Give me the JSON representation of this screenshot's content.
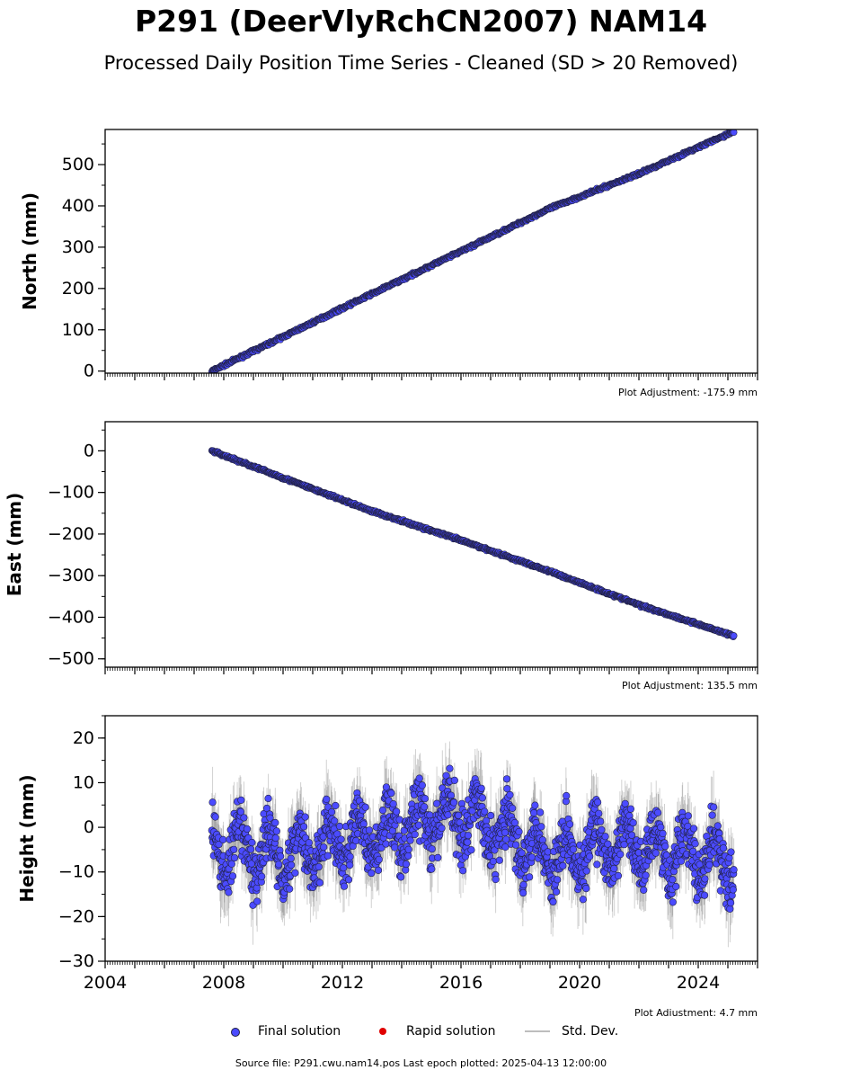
{
  "title": "P291 (DeerVlyRchCN2007) NAM14",
  "subtitle": "Processed Daily Position Time Series - Cleaned (SD > 20 Removed)",
  "legend": {
    "final_label": "Final solution",
    "rapid_label": "Rapid solution",
    "sd_label": "Std. Dev."
  },
  "footer": "Source file: P291.cwu.nam14.pos  Last epoch plotted: 2025-04-13 12:00:00",
  "colors": {
    "final": "#4b4bff",
    "rapid": "#e00000",
    "sd": "#bdbdbd",
    "edge": "#222244"
  },
  "chart_data": [
    {
      "type": "scatter",
      "ylabel": "North (mm)",
      "ylim": [
        -5,
        585
      ],
      "yticks": [
        0,
        100,
        200,
        300,
        400,
        500
      ],
      "ytick_labels": [
        "0",
        "100",
        "200",
        "300",
        "400",
        "500"
      ],
      "xlim": [
        2004,
        2026
      ],
      "adjustment": "Plot Adjustment: -175.9 mm",
      "series": [
        {
          "x": [
            2007.6,
            2010,
            2013,
            2016,
            2019,
            2022,
            2025.2
          ],
          "y": [
            0,
            83,
            187,
            290,
            394,
            478,
            580
          ]
        }
      ]
    },
    {
      "type": "scatter",
      "ylabel": "East (mm)",
      "ylim": [
        -520,
        70
      ],
      "yticks": [
        0,
        -100,
        -200,
        -300,
        -400,
        -500
      ],
      "ytick_labels": [
        "0",
        "−100",
        "−200",
        "−300",
        "−400",
        "−500"
      ],
      "xlim": [
        2004,
        2026
      ],
      "adjustment": "Plot Adjustment: 135.5 mm",
      "series": [
        {
          "x": [
            2007.6,
            2010,
            2013,
            2016,
            2019,
            2022,
            2025.2
          ],
          "y": [
            0,
            -65,
            -145,
            -215,
            -290,
            -370,
            -445
          ]
        }
      ]
    },
    {
      "type": "scatter",
      "ylabel": "Height (mm)",
      "ylim": [
        -30,
        25
      ],
      "yticks": [
        20,
        10,
        0,
        -10,
        -20,
        -30
      ],
      "ytick_labels": [
        "20",
        "10",
        "0",
        "−10",
        "−20",
        "−30"
      ],
      "xlim": [
        2004,
        2026
      ],
      "xticks": [
        2004,
        2008,
        2012,
        2016,
        2020,
        2024
      ],
      "xtick_labels": [
        "2004",
        "2008",
        "2012",
        "2016",
        "2020",
        "2024"
      ],
      "adjustment": "Plot Adjustment: 4.7 mm",
      "series": [
        {
          "x": [
            2007.6,
            2010,
            2013,
            2016,
            2019,
            2022,
            2025.2
          ],
          "y": [
            -5,
            -6,
            -2,
            3,
            -6,
            -4,
            -8
          ]
        }
      ]
    }
  ]
}
